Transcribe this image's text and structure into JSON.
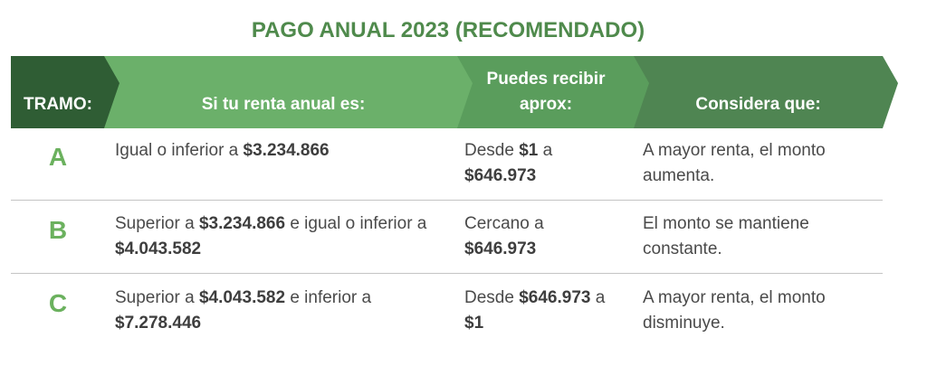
{
  "title": "PAGO ANUAL 2023 (RECOMENDADO)",
  "colors": {
    "title": "#4f8a4c",
    "header_dark": "#2f5d34",
    "header_light": "#6bb06a",
    "header_mid": "#5a9d5c",
    "header_col4": "#4f8552",
    "letter": "#6bb15e"
  },
  "headers": {
    "tramo": "TRAMO:",
    "renta": "Si tu renta anual es:",
    "recibir_line1": "Puedes recibir",
    "recibir_line2": "aprox:",
    "considera": "Considera que:"
  },
  "rows": [
    {
      "tramo": "A",
      "renta": {
        "t1": "Igual o inferior a ",
        "b1": "$3.234.866",
        "t2": "",
        "b2": ""
      },
      "recibir": {
        "t1": "Desde ",
        "b1": "$1",
        "t2": " a",
        "b2": "$646.973",
        "t3": ""
      },
      "considera": {
        "line1": "A mayor renta, el monto",
        "line2": "aumenta."
      }
    },
    {
      "tramo": "B",
      "renta": {
        "t1": "Superior a ",
        "b1": "$3.234.866",
        "t2": " e igual o inferior a",
        "b2": "$4.043.582"
      },
      "recibir": {
        "t1": "Cercano a",
        "b1": "",
        "t2": "",
        "b2": "$646.973",
        "t3": ""
      },
      "considera": {
        "line1": "El monto se mantiene",
        "line2": "constante."
      }
    },
    {
      "tramo": "C",
      "renta": {
        "t1": "Superior a ",
        "b1": "$4.043.582",
        "t2": " e inferior a",
        "b2": "$7.278.446"
      },
      "recibir": {
        "t1": "Desde ",
        "b1": "$646.973",
        "t2": " a",
        "b2": "$1",
        "t3": ""
      },
      "considera": {
        "line1": "A mayor renta, el monto",
        "line2": "disminuye."
      }
    }
  ]
}
